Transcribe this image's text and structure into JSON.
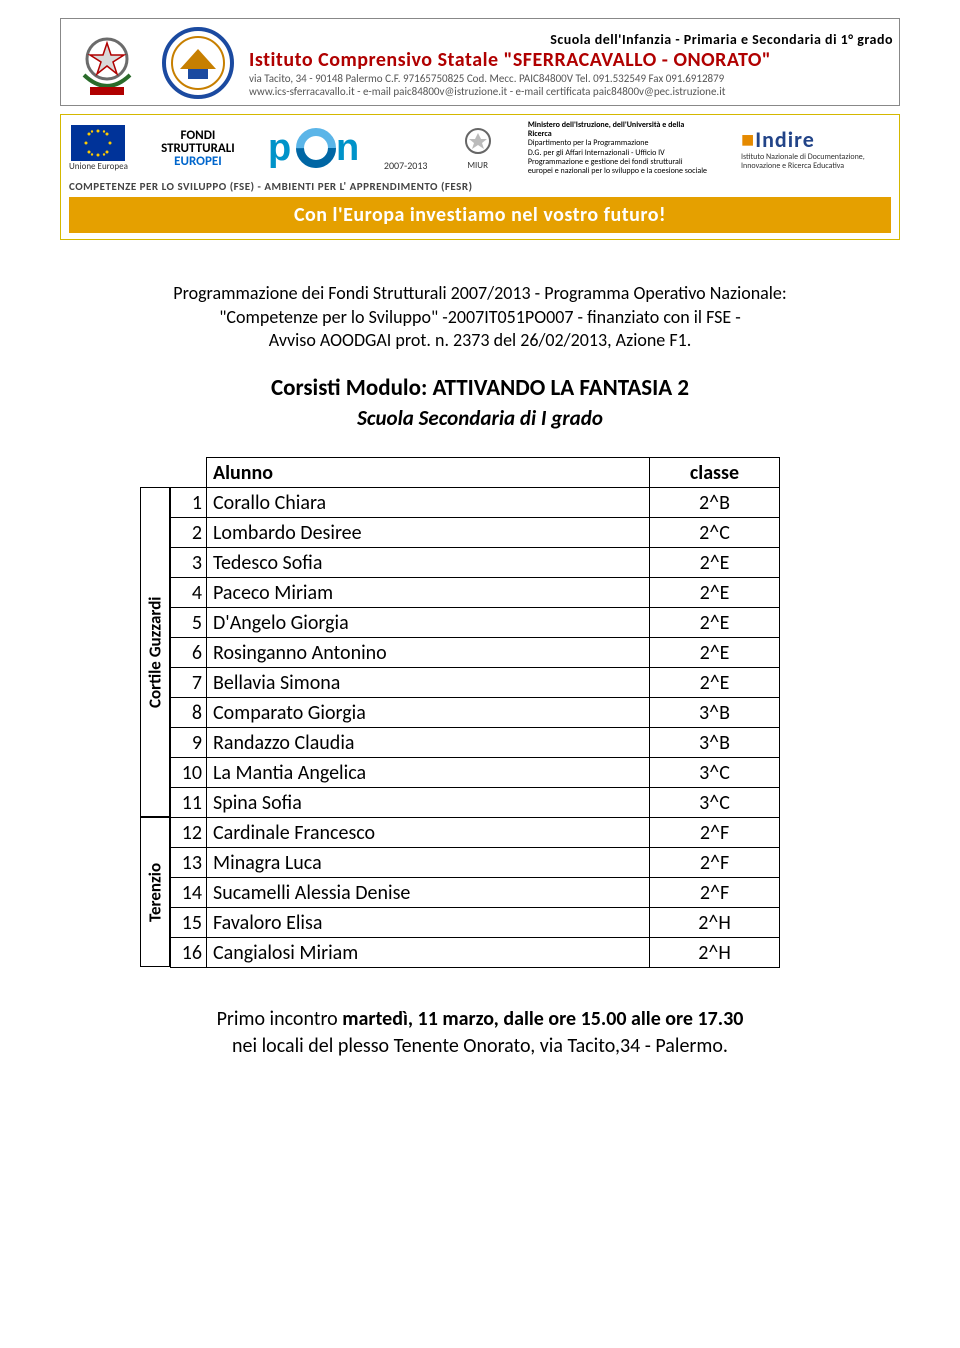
{
  "header1": {
    "line1": "Scuola dell'Infanzia - Primaria e Secondaria di 1° grado",
    "line2": "Istituto Comprensivo Statale \"SFERRACAVALLO - ONORATO\"",
    "line3": "via Tacito, 34 - 90148 Palermo   C.F. 97165750825   Cod. Mecc. PAIC84800V   Tel. 091.532549 Fax 091.6912879",
    "line4": "www.ics-sferracavallo.it - e-mail paic84800v@istruzione.it - e-mail certificata paic84800v@pec.istruzione.it"
  },
  "header2": {
    "ue_label": "Unione Europea",
    "fondi_l1": "FONDI",
    "fondi_l2": "STRUTTURALI",
    "fondi_l3": "EUROPEI",
    "pon": "pon",
    "pon_years": "2007-2013",
    "miur_label": "MIUR",
    "miur_text1": "Ministero dell'Istruzione, dell'Università e della Ricerca",
    "miur_text2": "Dipartimento per la Programmazione",
    "miur_text3": "D.G. per gli Affari Internazionali - Ufficio IV",
    "miur_text4": "Programmazione e gestione dei fondi strutturali europei e nazionali per lo sviluppo e la coesione sociale",
    "indire_brand": "Indire",
    "indire_sub": "Istituto Nazionale di Documentazione, Innovazione e Ricerca Educativa",
    "mid": "COMPETENZE PER LO SVILUPPO (FSE) - AMBIENTI PER L' APPRENDIMENTO (FESR)",
    "banner": "Con l'Europa investiamo nel vostro futuro!"
  },
  "programme": {
    "l1": "Programmazione dei Fondi Strutturali 2007/2013 - Programma Operativo Nazionale:",
    "l2": "\"Competenze per lo Sviluppo\" -2007IT051PO007 - finanziato con il FSE -",
    "l3": "Avviso AOODGAI prot. n. 2373 del 26/02/2013, Azione F1."
  },
  "module": {
    "title": "Corsisti Modulo: ATTIVANDO LA FANTASIA 2",
    "subtitle": "Scuola Secondaria di I grado"
  },
  "table": {
    "col_alunno": "Alunno",
    "col_classe": "classe",
    "side1": "Cortile Guzzardi",
    "side2": "Terenzio",
    "group1_count": 11,
    "group2_count": 5,
    "rows": [
      {
        "n": "1",
        "name": "Corallo Chiara",
        "cls": "2^B"
      },
      {
        "n": "2",
        "name": "Lombardo Desiree",
        "cls": "2^C"
      },
      {
        "n": "3",
        "name": "Tedesco Sofia",
        "cls": "2^E"
      },
      {
        "n": "4",
        "name": "Paceco  Miriam",
        "cls": "2^E"
      },
      {
        "n": "5",
        "name": "D'Angelo Giorgia",
        "cls": "2^E"
      },
      {
        "n": "6",
        "name": "Rosinganno Antonino",
        "cls": "2^E"
      },
      {
        "n": "7",
        "name": "Bellavia Simona",
        "cls": "2^E"
      },
      {
        "n": "8",
        "name": "Comparato Giorgia",
        "cls": "3^B"
      },
      {
        "n": "9",
        "name": "Randazzo Claudia",
        "cls": "3^B"
      },
      {
        "n": "10",
        "name": "La Mantia Angelica",
        "cls": "3^C"
      },
      {
        "n": "11",
        "name": "Spina Sofia",
        "cls": "3^C"
      },
      {
        "n": "12",
        "name": "Cardinale Francesco",
        "cls": "2^F"
      },
      {
        "n": "13",
        "name": "Minagra Luca",
        "cls": "2^F"
      },
      {
        "n": "14",
        "name": "Sucamelli Alessia Denise",
        "cls": "2^F"
      },
      {
        "n": "15",
        "name": "Favaloro Elisa",
        "cls": "2^H"
      },
      {
        "n": "16",
        "name": "Cangialosi Miriam",
        "cls": "2^H"
      }
    ]
  },
  "footer": {
    "pre": "Primo incontro ",
    "bold": "martedì, 11 marzo, dalle ore 15.00 alle ore 17.30",
    "line2": "nei locali del plesso Tenente Onorato, via Tacito,34 - Palermo."
  },
  "colors": {
    "red": "#b00000",
    "banner_bg": "#e5a000",
    "banner_fg": "#ffffff",
    "border_yellow": "#d4b800"
  }
}
